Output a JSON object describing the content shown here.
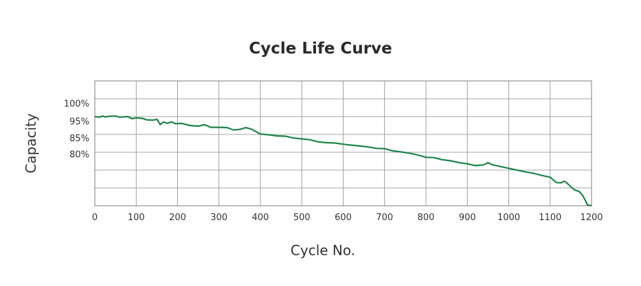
{
  "chart_data": {
    "type": "line",
    "title": "Cycle Life Curve",
    "xlabel": "Cycle No.",
    "ylabel": "Capacity",
    "x_ticks": [
      0,
      100,
      200,
      300,
      400,
      500,
      600,
      700,
      800,
      900,
      1000,
      1100,
      1200
    ],
    "x_tick_labels": [
      "0",
      "100",
      "200",
      "300",
      "400",
      "500",
      "600",
      "700",
      "800",
      "900",
      "1000",
      "1100",
      "1200"
    ],
    "y_gridlines": [
      0,
      1,
      2,
      3,
      4,
      5,
      6,
      7
    ],
    "y_tick_labels": [
      {
        "label": "100%",
        "level": 1.25
      },
      {
        "label": "95%",
        "level": 2.25
      },
      {
        "label": "85%",
        "level": 3.2
      },
      {
        "label": "80%",
        "level": 4.1
      }
    ],
    "xlim": [
      0,
      1200
    ],
    "ylim_levels": [
      0,
      7
    ],
    "grid": true,
    "line_color": "#1e8449",
    "series": [
      {
        "x": [
          0,
          10,
          20,
          25,
          35,
          50,
          60,
          80,
          90,
          100,
          115,
          125,
          140,
          150,
          158,
          166,
          175,
          185,
          195,
          210,
          230,
          250,
          265,
          280,
          300,
          320,
          335,
          350,
          365,
          380,
          400,
          420,
          440,
          460,
          480,
          500,
          520,
          540,
          560,
          580,
          600,
          620,
          640,
          660,
          680,
          700,
          720,
          740,
          760,
          780,
          800,
          820,
          840,
          860,
          880,
          900,
          920,
          940,
          950,
          960,
          980,
          1000,
          1020,
          1040,
          1060,
          1080,
          1100,
          1110,
          1115,
          1125,
          1135,
          1145,
          1150,
          1160,
          1170,
          1178,
          1185,
          1190,
          1200
        ],
        "y": [
          2.0,
          2.03,
          1.97,
          2.02,
          1.98,
          1.97,
          2.03,
          2.0,
          2.12,
          2.07,
          2.1,
          2.18,
          2.2,
          2.15,
          2.45,
          2.3,
          2.38,
          2.3,
          2.4,
          2.38,
          2.5,
          2.54,
          2.45,
          2.6,
          2.6,
          2.62,
          2.75,
          2.72,
          2.62,
          2.72,
          2.98,
          3.02,
          3.08,
          3.1,
          3.2,
          3.25,
          3.3,
          3.42,
          3.46,
          3.48,
          3.55,
          3.6,
          3.65,
          3.7,
          3.78,
          3.8,
          3.92,
          3.98,
          4.05,
          4.15,
          4.28,
          4.3,
          4.42,
          4.48,
          4.58,
          4.65,
          4.75,
          4.7,
          4.58,
          4.7,
          4.8,
          4.9,
          5.0,
          5.1,
          5.18,
          5.3,
          5.4,
          5.6,
          5.7,
          5.72,
          5.62,
          5.82,
          5.95,
          6.12,
          6.2,
          6.4,
          6.7,
          6.95,
          7.0
        ]
      }
    ]
  }
}
